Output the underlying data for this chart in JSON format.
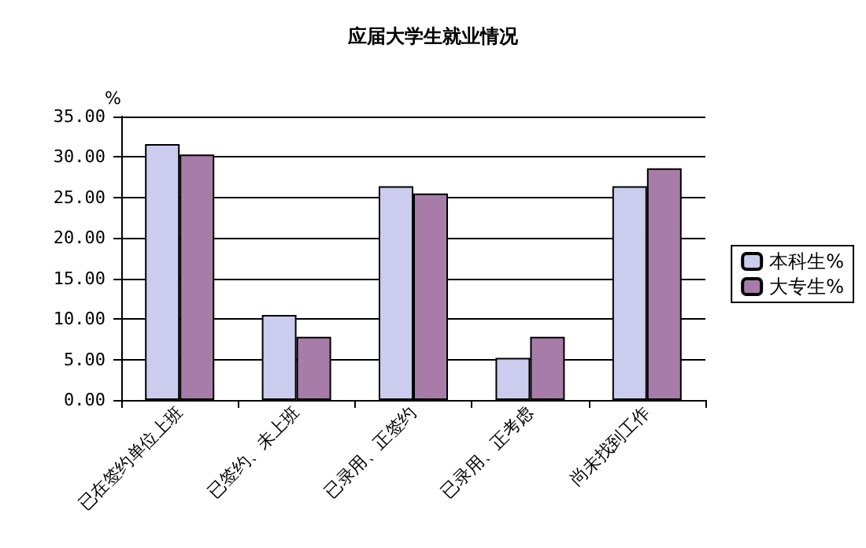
{
  "chart_data": {
    "type": "bar",
    "title": "应届大学生就业情况",
    "ylabel": "%",
    "categories": [
      "已在签约单位上班",
      "已签约、未上班",
      "已录用、正签约",
      "已录用、正考虑",
      "尚未找到工作"
    ],
    "series": [
      {
        "name": "本科生%",
        "color": "#ccccee",
        "values": [
          31.6,
          10.5,
          26.4,
          5.2,
          26.4
        ]
      },
      {
        "name": "大专生%",
        "color": "#a87ca8",
        "values": [
          30.3,
          7.8,
          25.5,
          7.8,
          28.6
        ]
      }
    ],
    "ylim": [
      0,
      35
    ],
    "yticks": [
      {
        "value": 0,
        "label": "0.00"
      },
      {
        "value": 5,
        "label": "5.00"
      },
      {
        "value": 10,
        "label": "10.00"
      },
      {
        "value": 15,
        "label": "15.00"
      },
      {
        "value": 20,
        "label": "20.00"
      },
      {
        "value": 25,
        "label": "25.00"
      },
      {
        "value": 30,
        "label": "30.00"
      },
      {
        "value": 35,
        "label": "35.00"
      }
    ],
    "grid": "y",
    "legend": "right"
  }
}
